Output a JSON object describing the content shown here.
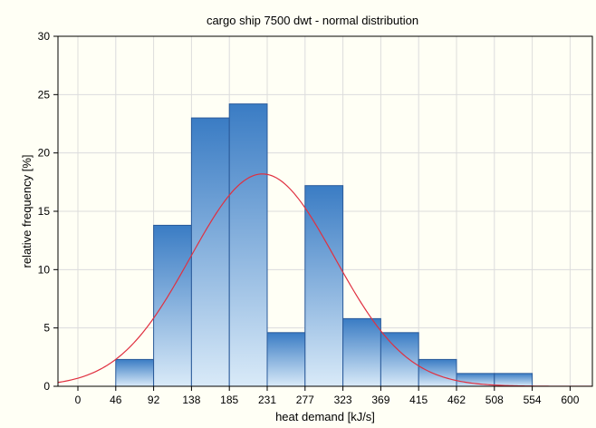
{
  "chart_data": {
    "type": "bar",
    "title": "cargo ship 7500 dwt - normal distribution",
    "xlabel": "heat demand [kJ/s]",
    "ylabel": "relative frequency [%]",
    "x_ticks": [
      "0",
      "46",
      "92",
      "138",
      "185",
      "231",
      "277",
      "323",
      "369",
      "415",
      "462",
      "508",
      "554",
      "600"
    ],
    "ylim": [
      0,
      30
    ],
    "y_ticks": [
      0,
      5,
      10,
      15,
      20,
      25,
      30
    ],
    "bins": [
      {
        "from": "46",
        "to": "92",
        "value": 2.3
      },
      {
        "from": "92",
        "to": "138",
        "value": 13.8
      },
      {
        "from": "138",
        "to": "185",
        "value": 23.0
      },
      {
        "from": "185",
        "to": "231",
        "value": 24.2
      },
      {
        "from": "231",
        "to": "277",
        "value": 4.6
      },
      {
        "from": "277",
        "to": "323",
        "value": 17.2
      },
      {
        "from": "323",
        "to": "369",
        "value": 5.8
      },
      {
        "from": "369",
        "to": "415",
        "value": 4.6
      },
      {
        "from": "415",
        "to": "462",
        "value": 2.3
      },
      {
        "from": "462",
        "to": "508",
        "value": 1.1
      },
      {
        "from": "508",
        "to": "554",
        "value": 1.1
      }
    ],
    "normal_curve": {
      "mean": 225,
      "std": 88,
      "peak": 18.2,
      "color": "#e03040"
    },
    "bar_color_top": "#3a7cc4",
    "bar_color_bottom": "#d9eaf8",
    "bar_border": "#2a5a9a",
    "grid": true
  }
}
